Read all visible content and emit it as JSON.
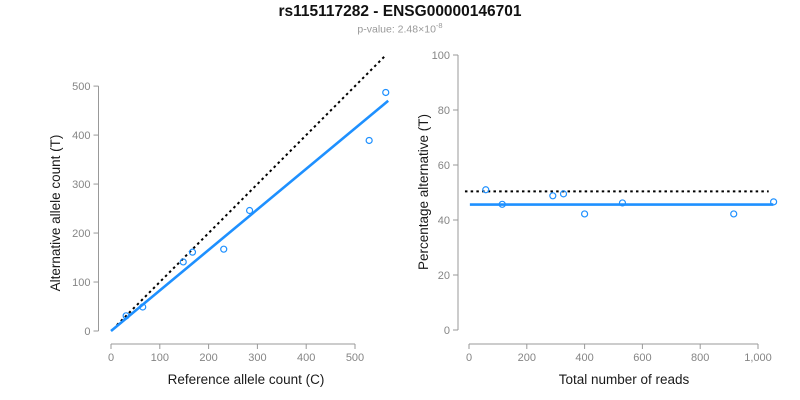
{
  "header": {
    "title": "rs115117282 - ENSG00000146701",
    "subtitle_base": "p-value: 2.48×10",
    "subtitle_exponent": "-8"
  },
  "colors": {
    "accent_blue": "#1E90FF",
    "line_black": "#000000",
    "axis_gray": "#999999",
    "tick_text_gray": "#858585",
    "axis_label_black": "#1a1a1a",
    "subtitle_gray": "#999999"
  },
  "marker": {
    "radius": 3,
    "stroke_width": 1.2
  },
  "chart_data": [
    {
      "type": "scatter",
      "panel": "left",
      "xlabel": "Reference allele count (C)",
      "ylabel": "Alternative allele count (T)",
      "xlim": [
        0,
        572
      ],
      "ylim": [
        0,
        563
      ],
      "grid": false,
      "xticks": [
        0,
        100,
        200,
        300,
        400,
        500
      ],
      "xtick_labels": [
        "0",
        "100",
        "200",
        "300",
        "400",
        "500"
      ],
      "yticks": [
        0,
        100,
        200,
        300,
        400,
        500
      ],
      "ytick_labels": [
        "0",
        "100",
        "200",
        "300",
        "400",
        "500"
      ],
      "points": [
        [
          31,
          31
        ],
        [
          65,
          49
        ],
        [
          148,
          141
        ],
        [
          167,
          161
        ],
        [
          231,
          167
        ],
        [
          284,
          246
        ],
        [
          529,
          389
        ],
        [
          563,
          487
        ]
      ],
      "lines": [
        {
          "name": "identity-line",
          "x1": 12,
          "y1": 12,
          "x2": 560,
          "y2": 560,
          "color": "#000000",
          "dashed": true
        },
        {
          "name": "regression-line",
          "x1": 0,
          "y1": 0,
          "x2": 568,
          "y2": 470,
          "color": "#1E90FF",
          "dashed": false
        }
      ]
    },
    {
      "type": "scatter",
      "panel": "right",
      "xlabel": "Total number of reads",
      "ylabel": "Percentage alternative (T)",
      "xlim": [
        -20,
        1115
      ],
      "ylim": [
        0,
        100
      ],
      "grid": false,
      "xticks": [
        0,
        200,
        400,
        600,
        800,
        1000
      ],
      "xtick_labels": [
        "0",
        "200",
        "400",
        "600",
        "800",
        "1,000"
      ],
      "yticks": [
        0,
        20,
        40,
        60,
        80,
        100
      ],
      "ytick_labels": [
        "0",
        "20",
        "40",
        "60",
        "80",
        "100"
      ],
      "points": [
        [
          58,
          51
        ],
        [
          115,
          45.7
        ],
        [
          290,
          48.8
        ],
        [
          327,
          49.5
        ],
        [
          400,
          42.2
        ],
        [
          531,
          46.2
        ],
        [
          916,
          42.2
        ],
        [
          1054,
          46.6
        ]
      ],
      "lines": [
        {
          "name": "expected-ratio-line",
          "x1": -14,
          "y1": 50.4,
          "x2": 1037,
          "y2": 50.4,
          "color": "#000000",
          "dashed": true
        },
        {
          "name": "fit-line",
          "x1": 3,
          "y1": 45.6,
          "x2": 1053,
          "y2": 45.6,
          "color": "#1E90FF",
          "dashed": false
        }
      ]
    }
  ]
}
